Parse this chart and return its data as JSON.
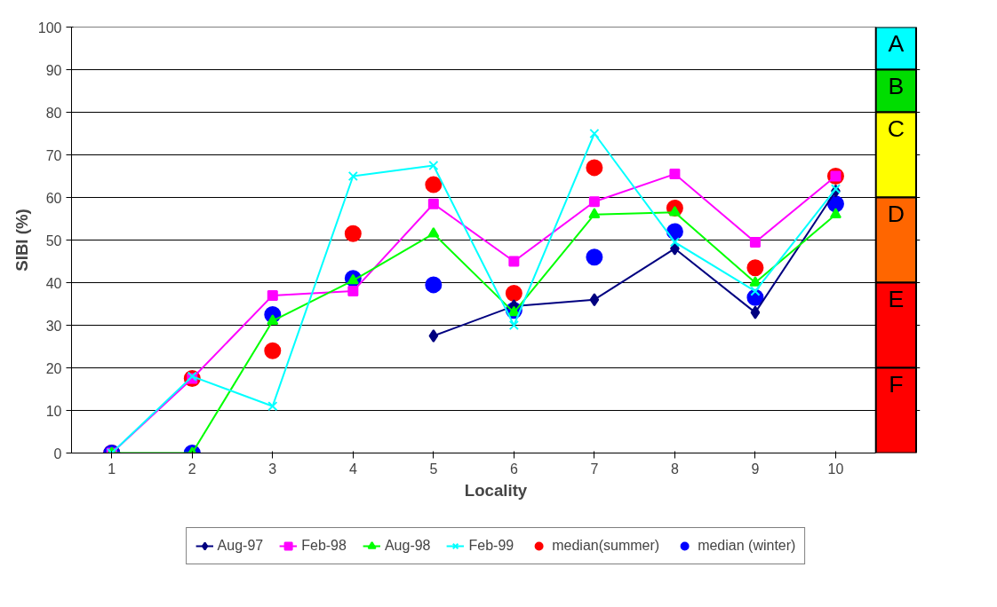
{
  "chart_data": {
    "type": "line",
    "xlabel": "Locality",
    "ylabel": "SIBI (%)",
    "categories": [
      "1",
      "2",
      "3",
      "4",
      "5",
      "6",
      "7",
      "8",
      "9",
      "10"
    ],
    "ylim": [
      0,
      100
    ],
    "yticks": [
      0,
      10,
      20,
      30,
      40,
      50,
      60,
      70,
      80,
      90,
      100
    ],
    "grid": "y",
    "legend": "bottom",
    "series": [
      {
        "name": "Aug-97",
        "color": "#000080",
        "marker": "diamond",
        "values": [
          null,
          null,
          null,
          null,
          27.5,
          34.5,
          36,
          48,
          33,
          61.5
        ]
      },
      {
        "name": "Feb-98",
        "color": "#ff00ff",
        "marker": "square",
        "values": [
          0,
          17.5,
          37,
          38,
          58.5,
          45,
          59,
          65.5,
          49.5,
          65
        ]
      },
      {
        "name": "Aug-98",
        "color": "#00ff00",
        "marker": "triangle",
        "values": [
          0,
          0,
          31,
          40.5,
          51.5,
          33,
          56,
          56.5,
          40,
          56
        ]
      },
      {
        "name": "Feb-99",
        "color": "#00ffff",
        "marker": "cross",
        "values": [
          0,
          18,
          11,
          65,
          67.5,
          30,
          75,
          49.5,
          38,
          62
        ]
      },
      {
        "name": "median(summer)",
        "type": "scatter",
        "color": "#ff0000",
        "marker": "circle",
        "values": [
          0,
          17.5,
          24,
          51.5,
          63,
          37.5,
          67,
          57.5,
          43.5,
          65
        ]
      },
      {
        "name": "median (winter)",
        "type": "scatter",
        "color": "#0000ff",
        "marker": "circle",
        "values": [
          0,
          0,
          32.5,
          41,
          39.5,
          33.5,
          46,
          52,
          36.5,
          58.5
        ]
      }
    ],
    "bands": [
      {
        "axis": "y",
        "from": 90,
        "to": 100,
        "label": "A",
        "color": "#00ffff"
      },
      {
        "axis": "y",
        "from": 80,
        "to": 90,
        "label": "B",
        "color": "#00dd00"
      },
      {
        "axis": "y",
        "from": 60,
        "to": 80,
        "label": "C",
        "color": "#ffff00"
      },
      {
        "axis": "y",
        "from": 40,
        "to": 60,
        "label": "D",
        "color": "#ff6600"
      },
      {
        "axis": "y",
        "from": 20,
        "to": 40,
        "label": "E",
        "color": "#ff0000"
      },
      {
        "axis": "y",
        "from": 0,
        "to": 20,
        "label": "F",
        "color": "#ff0000"
      }
    ]
  }
}
